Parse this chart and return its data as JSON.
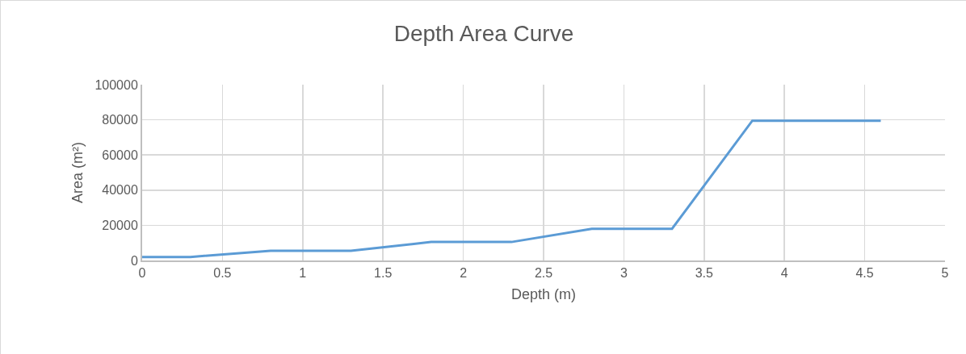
{
  "chart_data": {
    "type": "line",
    "title": "Depth Area Curve",
    "xlabel": "Depth (m)",
    "ylabel": "Area (m²)",
    "x": [
      0,
      0.3,
      0.8,
      1.3,
      1.8,
      2.3,
      2.8,
      3.3,
      3.8,
      4.6
    ],
    "series": [
      {
        "color": "#5b9bd5",
        "values": [
          2000,
          2000,
          5500,
          5500,
          10500,
          10500,
          18000,
          18000,
          79500,
          79500
        ]
      }
    ],
    "xlim": [
      0,
      5
    ],
    "xticks": [
      0,
      0.5,
      1,
      1.5,
      2,
      2.5,
      3,
      3.5,
      4,
      4.5,
      5
    ],
    "ylim": [
      0,
      100000
    ],
    "yticks": [
      0,
      20000,
      40000,
      60000,
      80000,
      100000
    ],
    "grid": true,
    "legend": false,
    "marker": "none",
    "line_style": "solid"
  }
}
